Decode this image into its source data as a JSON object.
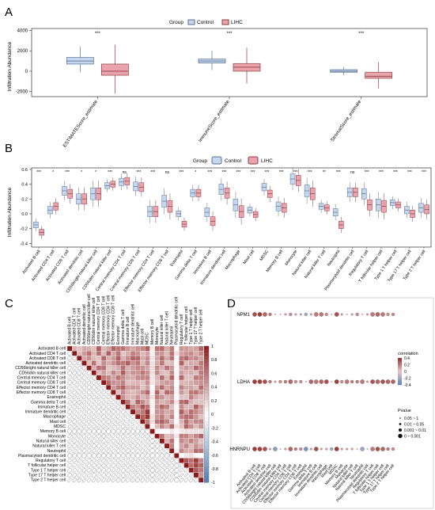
{
  "colors": {
    "control": "#c5d7ef",
    "lihc": "#eba4ab",
    "control_stroke": "#5b6f8c",
    "lihc_stroke": "#8a3c45",
    "pos": "#8b1a1a",
    "neg": "#4f7fb0"
  },
  "chart_data": [
    {
      "panel": "A",
      "type": "box",
      "legend_title": "Group",
      "legend": [
        "Control",
        "LIHC"
      ],
      "ylabel": "Infiltration Abundance",
      "ylim": [
        -2500,
        4200
      ],
      "yticks": [
        -2000,
        0,
        2000,
        4000
      ],
      "categories": [
        "ESTIMATEScore_estimate",
        "ImmuneScore_estimate",
        "StromalScore_estimate"
      ],
      "significance": [
        "***",
        "***",
        "***"
      ],
      "series": [
        {
          "name": "Control",
          "box": [
            [
              -100,
              700,
              1000,
              1350,
              2400
            ],
            [
              100,
              800,
              1000,
              1200,
              2000
            ],
            [
              -400,
              -100,
              0,
              150,
              400
            ]
          ]
        },
        {
          "name": "LIHC",
          "box": [
            [
              -2200,
              -400,
              0,
              700,
              2600
            ],
            [
              -1200,
              0,
              400,
              750,
              2300
            ],
            [
              -1700,
              -700,
              -500,
              -100,
              900
            ]
          ]
        }
      ]
    },
    {
      "panel": "B",
      "type": "box",
      "legend_title": "Group",
      "legend": [
        "Control",
        "LIHC"
      ],
      "ylabel": "Infiltration Abundance",
      "ylim": [
        -0.45,
        0.62
      ],
      "yticks": [
        -0.4,
        -0.2,
        0.0,
        0.2,
        0.4,
        0.6
      ],
      "categories": [
        "Activated B cell",
        "Activated CD4 T cell",
        "Activated CD8 T cell",
        "Activated dendritic cell",
        "CD56bright natural killer cell",
        "CD56dim natural killer cell",
        "Central memory CD4 T cell",
        "Central memory CD8 T cell",
        "Effector memory CD4 T cell",
        "Effector memory CD8 T cell",
        "Eosinophil",
        "Gamma delta T cell",
        "Immature B cell",
        "Immature dendritic cell",
        "Macrophage",
        "Mast cell",
        "MDSC",
        "Memory B cell",
        "Monocyte",
        "Natural killer cell",
        "Natural killer T cell",
        "Neutrophil",
        "Plasmacytoid dendritic cell",
        "Regulatory T cell",
        "T follicular helper cell",
        "Type 1 T helper cell",
        "Type 17 T helper cell",
        "Type 2 T helper cell"
      ],
      "significance": [
        "***",
        "*",
        "***",
        "*",
        "*",
        "***",
        "ns",
        "***",
        "***",
        "ns",
        "***",
        "*",
        "***",
        "***",
        "***",
        "***",
        "***",
        "***",
        "***",
        "***",
        "**",
        "***",
        "ns",
        "***",
        "***",
        "***",
        "***",
        "***"
      ],
      "series": [
        {
          "name": "Control",
          "medians": [
            -0.15,
            0.05,
            0.31,
            0.2,
            0.27,
            0.38,
            0.43,
            0.37,
            0.03,
            0.17,
            0.0,
            0.28,
            0.02,
            0.33,
            0.12,
            0.05,
            0.36,
            0.1,
            0.47,
            0.31,
            0.1,
            0.02,
            0.29,
            0.27,
            0.12,
            0.15,
            0.05,
            0.08
          ]
        },
        {
          "name": "LIHC",
          "medians": [
            -0.25,
            0.1,
            0.27,
            0.2,
            0.27,
            0.4,
            0.44,
            0.36,
            0.03,
            0.1,
            -0.14,
            0.28,
            -0.1,
            0.28,
            0.03,
            -0.01,
            0.27,
            0.08,
            0.45,
            0.27,
            0.08,
            -0.15,
            0.29,
            0.12,
            0.1,
            0.12,
            0.0,
            0.06
          ]
        }
      ]
    },
    {
      "panel": "C",
      "type": "heatmap",
      "labels": [
        "Activated B cell",
        "Activated CD4 T cell",
        "Activated CD8 T cell",
        "Activated dendritic cell",
        "CD56bright natural killer cell",
        "CD56dim natural killer cell",
        "Central memory CD4 T cell",
        "Central memory CD8 T cell",
        "Effector memory CD4 T cell",
        "Effector memory CD8 T cell",
        "Eosinophil",
        "Gamma delta T cell",
        "Immature B cell",
        "Immature dendritic cell",
        "Macrophage",
        "Mast cell",
        "MDSC",
        "Memory B cell",
        "Monocyte",
        "Natural killer cell",
        "Natural killer T cell",
        "Neutrophil",
        "Plasmacytoid dendritic cell",
        "Regulatory T cell",
        "T follicular helper cell",
        "Type 1 T helper cell",
        "Type 17 T helper cell",
        "Type 2 T helper cell"
      ],
      "colorbar_ticks": [
        1,
        0.8,
        0.6,
        0.4,
        0.2,
        0,
        -0.2,
        -0.4,
        -0.6,
        -0.8,
        -1
      ]
    },
    {
      "panel": "D",
      "type": "dot",
      "rows": [
        "NPM1",
        "LDHA",
        "HNRNPU"
      ],
      "columns": [
        "Activated B cell",
        "Activated CD4 T cell",
        "Activated CD8 T cell",
        "Activated dendritic cell",
        "CD56bright natural killer cell",
        "CD56dim natural killer cell",
        "Central memory CD4 T cell",
        "Central memory CD8 T cell",
        "Effector memory CD4 T cell",
        "Effector memory CD8 T cell",
        "Eosinophil",
        "Gamma delta T cell",
        "Immature B cell",
        "Immature dendritic cell",
        "Macrophage",
        "Mast cell",
        "MDSC",
        "Memory B cell",
        "Monocyte",
        "Natural killer cell",
        "Natural killer T cell",
        "Neutrophil",
        "Plasmacytoid dendritic cell",
        "Regulatory T cell",
        "T follicular helper cell",
        "Type 1 T helper cell",
        "Type 17 T helper cell",
        "Type 2 T helper cell"
      ],
      "legend_color_title": "correlation",
      "color_ticks": [
        "0.4",
        "0.2",
        "0",
        "-0.2",
        "-0.4"
      ],
      "legend_size_title": "Pvalue",
      "size_labels": [
        "0.05 ~ 1",
        "0.01 ~ 0.05",
        "0.001 ~ 0.01",
        "0 ~ 0.001"
      ],
      "correlation": [
        [
          0.3,
          0.35,
          0.25,
          0.2,
          -0.1,
          0.05,
          0.1,
          0.15,
          0.1,
          0.1,
          -0.2,
          0.1,
          0.2,
          0.2,
          0.15,
          -0.1,
          0.3,
          0.1,
          0.05,
          0.1,
          0.15,
          0.05,
          0.1,
          0.2,
          0.25,
          0.2,
          0.15,
          0.15
        ],
        [
          0.35,
          0.35,
          0.3,
          0.2,
          0.1,
          0.15,
          0.2,
          0.25,
          0.15,
          0.15,
          -0.1,
          0.25,
          0.2,
          0.25,
          0.3,
          0.05,
          0.35,
          0.15,
          0.2,
          0.2,
          0.2,
          0.2,
          0.1,
          0.3,
          0.25,
          0.3,
          0.25,
          0.25
        ],
        [
          0.35,
          0.35,
          0.3,
          0.1,
          -0.25,
          0.05,
          0.1,
          0.25,
          0.2,
          0.15,
          -0.3,
          0.1,
          0.3,
          0.1,
          0.1,
          -0.2,
          0.35,
          0.1,
          0.1,
          0.1,
          0.05,
          -0.2,
          0.05,
          0.2,
          0.3,
          0.25,
          0.2,
          0.15
        ]
      ],
      "pvalue_class": [
        [
          3,
          3,
          3,
          2,
          0,
          0,
          1,
          2,
          1,
          1,
          2,
          1,
          3,
          3,
          2,
          0,
          3,
          1,
          0,
          1,
          2,
          0,
          1,
          3,
          3,
          3,
          2,
          2
        ],
        [
          3,
          3,
          3,
          2,
          1,
          2,
          2,
          3,
          2,
          2,
          0,
          3,
          3,
          3,
          3,
          0,
          3,
          2,
          3,
          2,
          2,
          3,
          1,
          3,
          3,
          3,
          3,
          3
        ],
        [
          3,
          3,
          3,
          1,
          3,
          0,
          1,
          3,
          2,
          2,
          3,
          1,
          3,
          1,
          1,
          2,
          3,
          1,
          1,
          1,
          0,
          3,
          0,
          3,
          3,
          3,
          2,
          2
        ]
      ]
    }
  ]
}
